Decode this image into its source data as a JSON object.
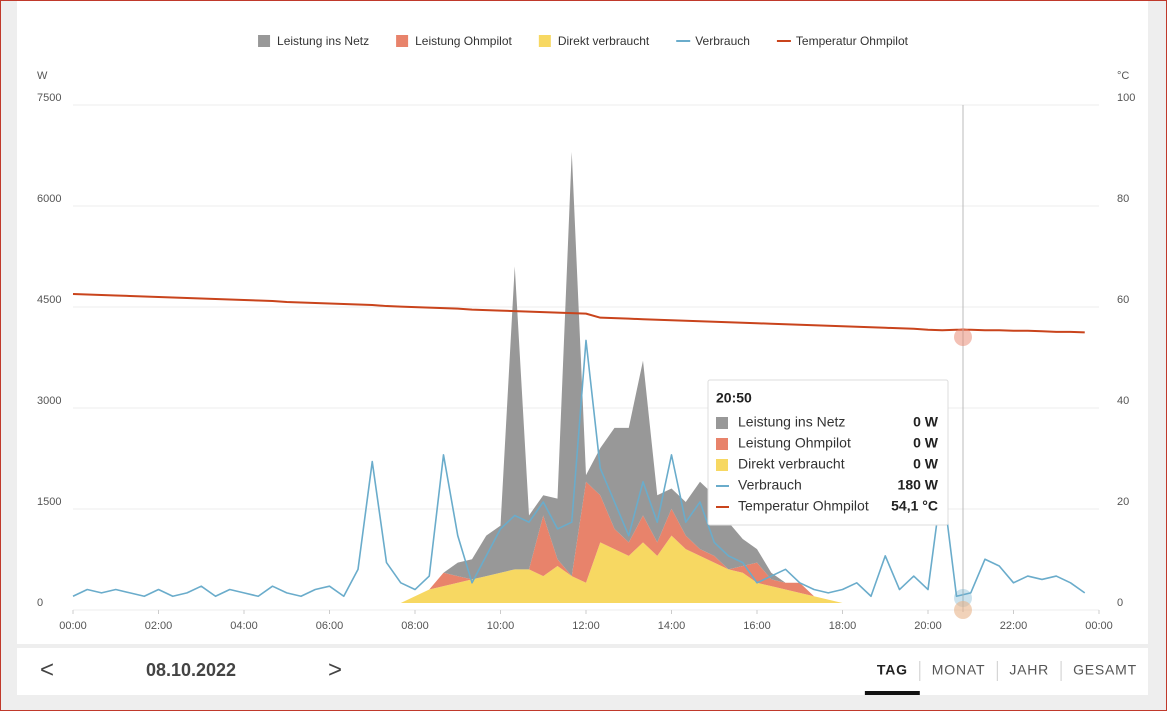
{
  "chart_data": {
    "type": "line",
    "y_label": "W",
    "y2_label": "°C",
    "xlim": [
      0,
      1440
    ],
    "xticks": [
      {
        "value": 0,
        "label": "00:00"
      },
      {
        "value": 120,
        "label": "02:00"
      },
      {
        "value": 240,
        "label": "04:00"
      },
      {
        "value": 360,
        "label": "06:00"
      },
      {
        "value": 480,
        "label": "08:00"
      },
      {
        "value": 600,
        "label": "10:00"
      },
      {
        "value": 720,
        "label": "12:00"
      },
      {
        "value": 840,
        "label": "14:00"
      },
      {
        "value": 960,
        "label": "16:00"
      },
      {
        "value": 1080,
        "label": "18:00"
      },
      {
        "value": 1200,
        "label": "20:00"
      },
      {
        "value": 1320,
        "label": "22:00"
      },
      {
        "value": 1440,
        "label": "00:00"
      }
    ],
    "ylim": [
      0,
      7500
    ],
    "yticks": [
      0,
      1500,
      3000,
      4500,
      6000,
      7500
    ],
    "y2lim": [
      0,
      100
    ],
    "y2ticks": [
      0,
      20,
      40,
      60,
      80,
      100
    ],
    "grid": true,
    "legend": "top",
    "x": [
      0,
      20,
      40,
      60,
      80,
      100,
      120,
      140,
      160,
      180,
      200,
      220,
      240,
      260,
      280,
      300,
      320,
      340,
      360,
      380,
      400,
      420,
      440,
      460,
      480,
      500,
      520,
      540,
      560,
      580,
      600,
      620,
      640,
      660,
      680,
      700,
      720,
      740,
      760,
      780,
      800,
      820,
      840,
      860,
      880,
      900,
      920,
      940,
      960,
      980,
      1000,
      1020,
      1040,
      1060,
      1080,
      1100,
      1120,
      1140,
      1160,
      1180,
      1200,
      1220,
      1240,
      1260,
      1280,
      1300,
      1320,
      1340,
      1360,
      1380,
      1400,
      1420
    ],
    "series": [
      {
        "name": "Direkt verbraucht",
        "type": "area",
        "color": "#f7d862",
        "values": [
          0,
          0,
          0,
          0,
          0,
          0,
          0,
          0,
          0,
          0,
          0,
          0,
          0,
          0,
          0,
          0,
          0,
          0,
          0,
          0,
          0,
          0,
          0,
          0,
          100,
          200,
          250,
          300,
          350,
          400,
          450,
          500,
          500,
          400,
          550,
          400,
          300,
          900,
          800,
          700,
          900,
          700,
          1000,
          800,
          700,
          600,
          500,
          450,
          300,
          250,
          200,
          150,
          100,
          50,
          0,
          0,
          0,
          0,
          0,
          0,
          0,
          0,
          0,
          0,
          0,
          0,
          0,
          0,
          0,
          0,
          0,
          0
        ]
      },
      {
        "name": "Leistung Ohmpilot",
        "type": "area",
        "color": "#e8836b",
        "values": [
          0,
          0,
          0,
          0,
          0,
          0,
          0,
          0,
          0,
          0,
          0,
          0,
          0,
          0,
          0,
          0,
          0,
          0,
          0,
          0,
          0,
          0,
          0,
          0,
          0,
          0,
          200,
          100,
          0,
          0,
          0,
          0,
          0,
          900,
          100,
          0,
          1500,
          700,
          300,
          200,
          400,
          200,
          400,
          200,
          100,
          100,
          0,
          100,
          300,
          100,
          100,
          150,
          0,
          0,
          0,
          0,
          0,
          0,
          0,
          0,
          0,
          0,
          0,
          0,
          0,
          0,
          0,
          0,
          0,
          0,
          0,
          0
        ]
      },
      {
        "name": "Leistung ins Netz",
        "type": "area",
        "color": "#989898",
        "values": [
          0,
          0,
          0,
          0,
          0,
          0,
          0,
          0,
          0,
          0,
          0,
          0,
          0,
          0,
          0,
          0,
          0,
          0,
          0,
          0,
          0,
          0,
          0,
          0,
          0,
          0,
          0,
          200,
          300,
          600,
          700,
          4500,
          800,
          300,
          900,
          6300,
          100,
          700,
          1500,
          1700,
          2300,
          700,
          300,
          500,
          1000,
          900,
          700,
          400,
          200,
          100,
          0,
          0,
          0,
          0,
          0,
          0,
          0,
          0,
          0,
          0,
          0,
          0,
          0,
          0,
          0,
          0,
          0,
          0,
          0,
          0,
          0,
          0
        ]
      },
      {
        "name": "Verbrauch",
        "type": "line",
        "color": "#6aaccb",
        "values": [
          100,
          200,
          150,
          200,
          150,
          100,
          200,
          100,
          150,
          250,
          100,
          200,
          150,
          100,
          250,
          150,
          100,
          200,
          250,
          100,
          500,
          2100,
          600,
          300,
          200,
          400,
          2200,
          1000,
          300,
          700,
          1100,
          1300,
          1200,
          1500,
          1100,
          1200,
          3900,
          2000,
          1500,
          1000,
          1800,
          1200,
          2200,
          1200,
          1500,
          900,
          700,
          600,
          300,
          400,
          500,
          300,
          200,
          150,
          200,
          300,
          100,
          700,
          200,
          400,
          200,
          1800,
          100,
          150,
          650,
          550,
          300,
          400,
          350,
          400,
          300,
          150
        ]
      },
      {
        "name": "Temperatur Ohmpilot",
        "type": "line",
        "axis": "y2",
        "color": "#c9441c",
        "values": [
          61.2,
          61.1,
          61.0,
          60.9,
          60.8,
          60.7,
          60.6,
          60.5,
          60.4,
          60.3,
          60.2,
          60.1,
          60.0,
          59.9,
          59.8,
          59.6,
          59.5,
          59.4,
          59.3,
          59.2,
          59.1,
          59.0,
          58.8,
          58.7,
          58.6,
          58.5,
          58.4,
          58.3,
          58.1,
          58.0,
          57.9,
          57.8,
          57.7,
          57.6,
          57.5,
          57.4,
          57.3,
          56.5,
          56.4,
          56.3,
          56.2,
          56.1,
          56.0,
          55.9,
          55.8,
          55.7,
          55.6,
          55.5,
          55.4,
          55.3,
          55.2,
          55.1,
          55.0,
          54.9,
          54.8,
          54.7,
          54.6,
          54.5,
          54.4,
          54.3,
          54.1,
          54.0,
          54.1,
          54.1,
          54.0,
          54.0,
          53.9,
          53.9,
          53.8,
          53.7,
          53.7,
          53.6
        ]
      }
    ],
    "legend_order": [
      2,
      1,
      0,
      3,
      4
    ]
  },
  "tooltip": {
    "time": "20:50",
    "rows": [
      {
        "series": 2,
        "label": "Leistung ins Netz",
        "value": "0 W"
      },
      {
        "series": 1,
        "label": "Leistung Ohmpilot",
        "value": "0 W"
      },
      {
        "series": 0,
        "label": "Direkt verbraucht",
        "value": "0 W"
      },
      {
        "series": 3,
        "label": "Verbrauch",
        "value": "180 W"
      },
      {
        "series": 4,
        "label": "Temperatur Ohmpilot",
        "value": "54,1 °C"
      }
    ]
  },
  "footer": {
    "prev": "<",
    "date": "08.10.2022",
    "next": ">",
    "tabs": [
      "TAG",
      "MONAT",
      "JAHR",
      "GESAMT"
    ],
    "active_tab": 0
  }
}
